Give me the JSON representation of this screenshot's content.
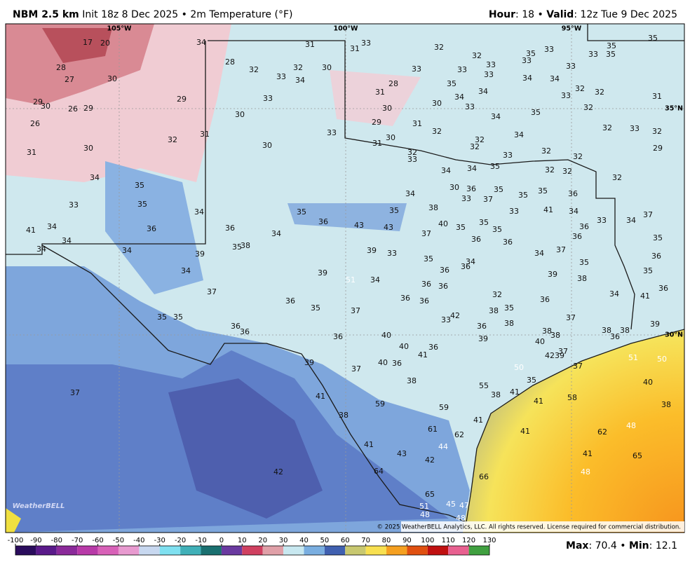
{
  "header": {
    "left": [
      {
        "text": "NBM 2.5 km",
        "bold": true
      },
      {
        "text": " Init 18z 8 Dec 2025 • 2m Temperature (°F)"
      }
    ],
    "right": [
      {
        "text": "Hour",
        "bold": true
      },
      {
        "text": ": 18 • "
      },
      {
        "text": "Valid",
        "bold": true
      },
      {
        "text": ": 12z Tue 9 Dec 2025"
      }
    ]
  },
  "graticule": {
    "lon": [
      "105°W",
      "100°W",
      "95°W"
    ],
    "lat": [
      "35°N",
      "30°N"
    ]
  },
  "map_labels": [
    17,
    20,
    34,
    31,
    31,
    33,
    32,
    35,
    32,
    35,
    33,
    35,
    33,
    35,
    33,
    33,
    28,
    28,
    32,
    32,
    30,
    33,
    34,
    33,
    33,
    27,
    30,
    33,
    34,
    35,
    33,
    34,
    28,
    31,
    34,
    32,
    32,
    33,
    31,
    33,
    34,
    29,
    29,
    30,
    26,
    29,
    30,
    30,
    33,
    32,
    30,
    35,
    34,
    29,
    26,
    31,
    32,
    34,
    32,
    33,
    32,
    33,
    31,
    30,
    31,
    32,
    32,
    32,
    30,
    30,
    31,
    32,
    33,
    33,
    32,
    32,
    29,
    35,
    34,
    34,
    32,
    32,
    32,
    34,
    35,
    30,
    36,
    35,
    35,
    35,
    34,
    36,
    33,
    35,
    33,
    37,
    38,
    35,
    41,
    34,
    33,
    34,
    35,
    37,
    33,
    34,
    34,
    41,
    36,
    36,
    36,
    43,
    43,
    40,
    35,
    35,
    35,
    36,
    34,
    37,
    36,
    36,
    36,
    35,
    34,
    34,
    35,
    38,
    39,
    39,
    33,
    37,
    34,
    36,
    35,
    34,
    36,
    36,
    35,
    35,
    34,
    34,
    34,
    39,
    38,
    36,
    36,
    36,
    37,
    34,
    41,
    36,
    35,
    36,
    36,
    32,
    36,
    35,
    38,
    37,
    35,
    35,
    42,
    33,
    37,
    38,
    36,
    36,
    36,
    39,
    39,
    38,
    38,
    38,
    38,
    40,
    36,
    39,
    36,
    40,
    40,
    36,
    37,
    42,
    39,
    41,
    39,
    40,
    36,
    37,
    37,
    51,
    50,
    50,
    38,
    35,
    40,
    55,
    37,
    38,
    41,
    41,
    41,
    58,
    59,
    38,
    59,
    38,
    41,
    48,
    61,
    41,
    62,
    62,
    44,
    41,
    43,
    42,
    41,
    65,
    64,
    42,
    48,
    66,
    65,
    45,
    47,
    51,
    48,
    48,
    51
  ],
  "copyright": "© 2025 WeatherBELL Analytics, LLC. All rights reserved. License required for commercial distribution.",
  "logo": "WeatherBELL",
  "colorbar": {
    "ticks": [
      -100,
      -90,
      -80,
      -70,
      -60,
      -50,
      -40,
      -30,
      -20,
      -10,
      0,
      10,
      20,
      30,
      40,
      50,
      60,
      70,
      80,
      90,
      100,
      110,
      120,
      130
    ]
  },
  "stats": [
    {
      "text": "Max",
      "bold": true
    },
    {
      "text": ": 70.4 • "
    },
    {
      "text": "Min",
      "bold": true
    },
    {
      "text": ": 12.1"
    }
  ]
}
